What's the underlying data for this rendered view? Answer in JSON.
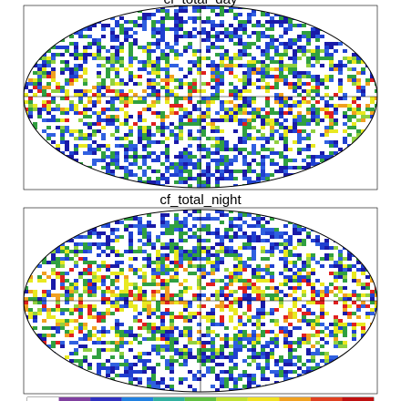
{
  "panels": [
    {
      "title": "cf_total_day"
    },
    {
      "title": "cf_total_night"
    }
  ]
}
